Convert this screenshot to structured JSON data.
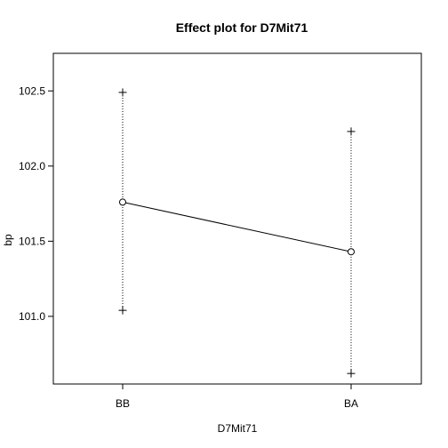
{
  "chart_data": {
    "type": "line",
    "title": "Effect plot for D7Mit71",
    "xlabel": "D7Mit71",
    "ylabel": "bp",
    "categories": [
      "BB",
      "BA"
    ],
    "estimates": [
      101.76,
      101.43
    ],
    "lower": [
      101.04,
      100.62
    ],
    "upper": [
      102.49,
      102.23
    ],
    "ylim": [
      100.55,
      102.75
    ],
    "yticks": [
      101.0,
      101.5,
      102.0,
      102.5
    ],
    "ytick_labels": [
      "101.0",
      "101.5",
      "102.0",
      "102.5"
    ],
    "grid": false,
    "line_color": "#000000",
    "errorbar_style": "dotted",
    "marker_estimate": "open-circle",
    "marker_limits": "plus"
  }
}
